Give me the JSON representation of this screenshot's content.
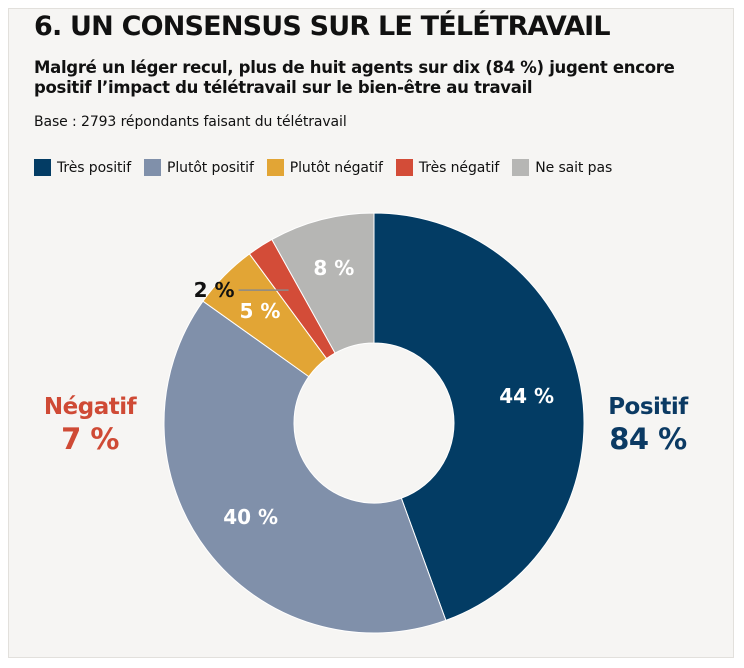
{
  "title": "6. UN CONSENSUS SUR LE TÉLÉTRAVAIL",
  "subtitle": "Malgré un léger recul, plus de huit agents sur dix (84 %) jugent encore positif l’impact du télétravail sur le bien-être au travail",
  "base_note": "Base : 2793 répondants faisant du télétravail",
  "groups": {
    "negative": {
      "name": "Négatif",
      "value": "7 %",
      "color": "#cf4a35"
    },
    "positive": {
      "name": "Positif",
      "value": "84 %",
      "color": "#0b3a63"
    }
  },
  "chart_data": {
    "type": "donut",
    "title": "",
    "categories": [
      "Très positif",
      "Plutôt positif",
      "Plutôt négatif",
      "Très négatif",
      "Ne sait pas"
    ],
    "values": [
      44,
      40,
      5,
      2,
      8
    ],
    "labels": [
      "44 %",
      "40 %",
      "5 %",
      "2 %",
      "8 %"
    ],
    "colors": [
      "#033c64",
      "#8090aa",
      "#e2a535",
      "#d34c38",
      "#b6b6b4"
    ],
    "unit": "%",
    "legend": "top",
    "start": "12 o'clock, clockwise"
  }
}
